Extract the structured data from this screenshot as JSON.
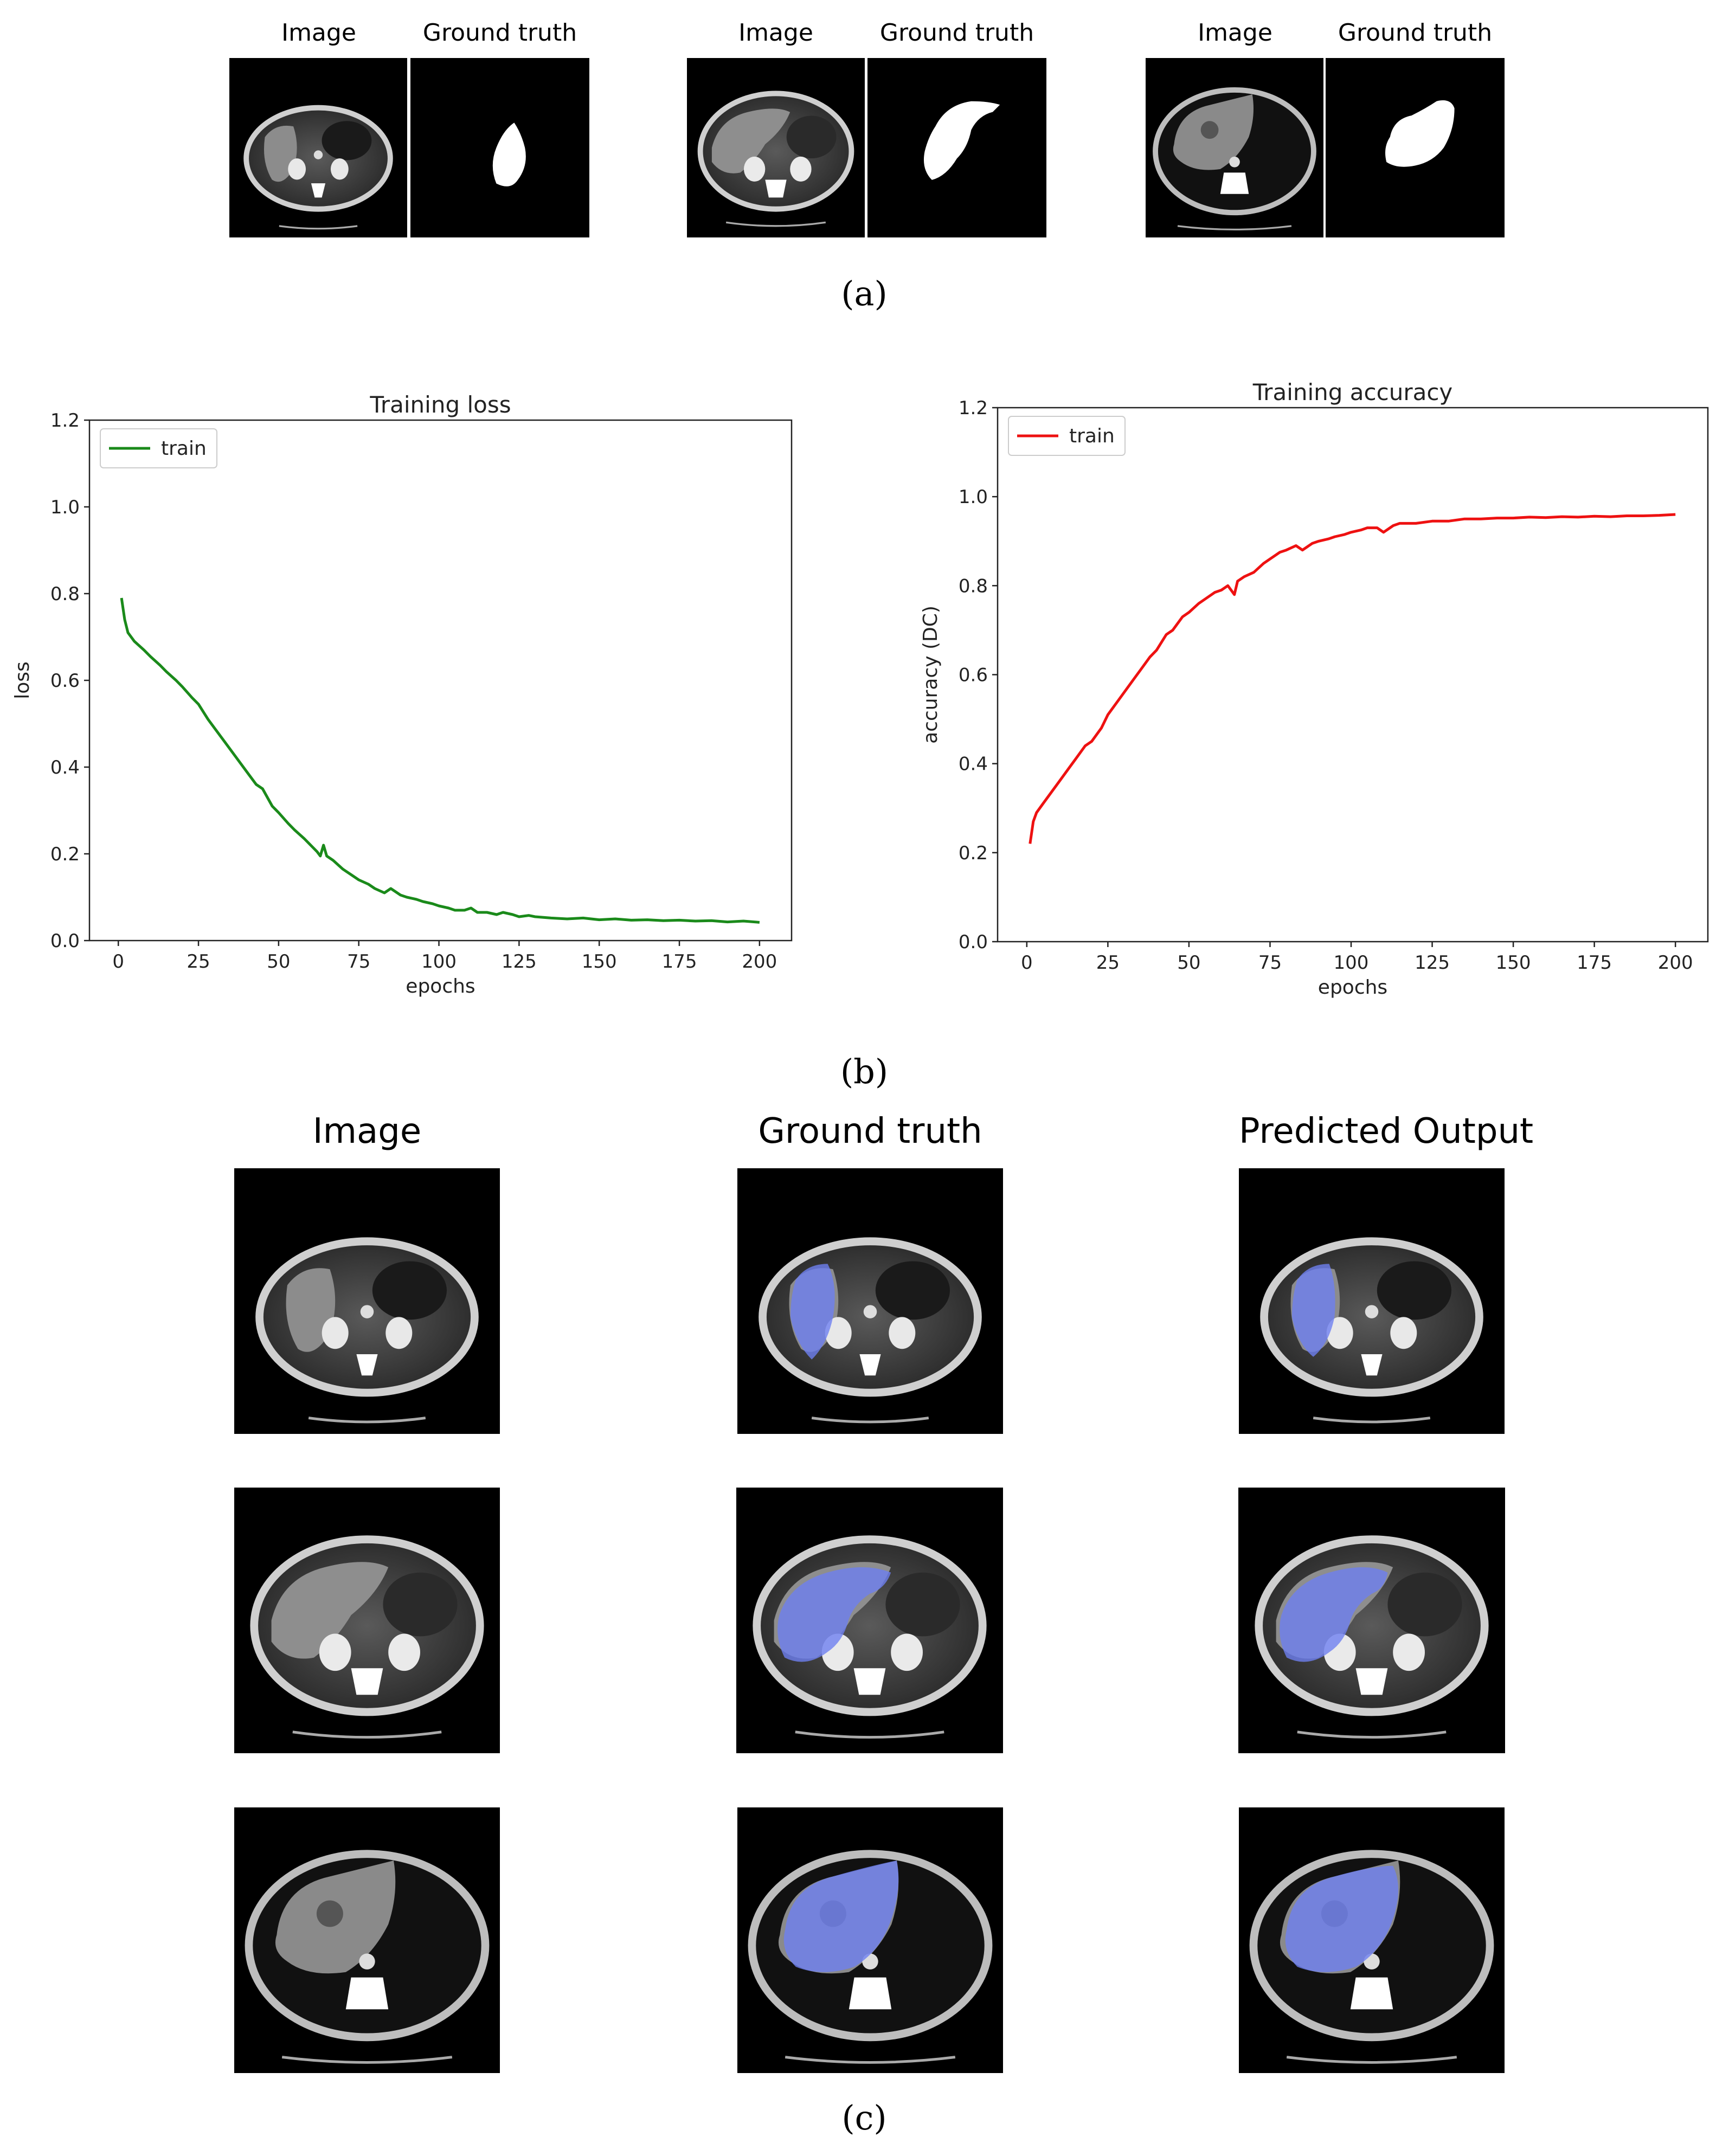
{
  "panel_a": {
    "groups": [
      {
        "image_label": "Image",
        "truth_label": "Ground truth"
      },
      {
        "image_label": "Image",
        "truth_label": "Ground truth"
      },
      {
        "image_label": "Image",
        "truth_label": "Ground truth"
      }
    ],
    "caption": "(a)"
  },
  "panel_b": {
    "caption": "(b)"
  },
  "panel_c": {
    "headers": [
      "Image",
      "Ground truth",
      "Predicted Output"
    ],
    "caption": "(c)"
  },
  "colors": {
    "loss_line": "#1a8a1a",
    "acc_line": "#ee1111",
    "overlay": "#6e7ff0"
  },
  "chart_data": [
    {
      "type": "line",
      "title": "Training loss",
      "xlabel": "epochs",
      "ylabel": "loss",
      "xlim": [
        -9,
        210
      ],
      "ylim": [
        0,
        1.2
      ],
      "xticks": [
        "0",
        "25",
        "50",
        "75",
        "100",
        "125",
        "150",
        "175",
        "200"
      ],
      "yticks": [
        "0.0",
        "0.2",
        "0.4",
        "0.6",
        "0.8",
        "1.0",
        "1.2"
      ],
      "legend": "top-left",
      "series": [
        {
          "name": "train",
          "x": [
            1,
            2,
            3,
            5,
            8,
            10,
            13,
            15,
            18,
            20,
            23,
            25,
            28,
            30,
            33,
            35,
            38,
            40,
            43,
            45,
            48,
            50,
            53,
            55,
            58,
            60,
            62,
            63,
            64,
            65,
            67,
            70,
            73,
            75,
            78,
            80,
            83,
            85,
            88,
            90,
            93,
            95,
            98,
            100,
            103,
            105,
            108,
            110,
            112,
            115,
            118,
            120,
            123,
            125,
            128,
            130,
            135,
            140,
            145,
            150,
            155,
            160,
            165,
            170,
            175,
            180,
            185,
            190,
            195,
            200
          ],
          "y": [
            0.79,
            0.74,
            0.71,
            0.69,
            0.67,
            0.655,
            0.635,
            0.62,
            0.6,
            0.585,
            0.56,
            0.545,
            0.51,
            0.49,
            0.46,
            0.44,
            0.41,
            0.39,
            0.36,
            0.35,
            0.31,
            0.295,
            0.27,
            0.255,
            0.235,
            0.22,
            0.205,
            0.195,
            0.22,
            0.195,
            0.185,
            0.165,
            0.15,
            0.14,
            0.13,
            0.12,
            0.11,
            0.12,
            0.105,
            0.1,
            0.095,
            0.09,
            0.085,
            0.08,
            0.075,
            0.07,
            0.07,
            0.075,
            0.065,
            0.065,
            0.06,
            0.065,
            0.06,
            0.055,
            0.058,
            0.055,
            0.052,
            0.05,
            0.052,
            0.048,
            0.05,
            0.047,
            0.048,
            0.046,
            0.047,
            0.045,
            0.046,
            0.043,
            0.045,
            0.042
          ]
        }
      ]
    },
    {
      "type": "line",
      "title": "Training accuracy",
      "xlabel": "epochs",
      "ylabel": "accuracy (DC)",
      "xlim": [
        -9,
        210
      ],
      "ylim": [
        0,
        1.2
      ],
      "xticks": [
        "0",
        "25",
        "50",
        "75",
        "100",
        "125",
        "150",
        "175",
        "200"
      ],
      "yticks": [
        "0.0",
        "0.2",
        "0.4",
        "0.6",
        "0.8",
        "1.0",
        "1.2"
      ],
      "legend": "top-left",
      "series": [
        {
          "name": "train",
          "x": [
            1,
            2,
            3,
            5,
            8,
            10,
            13,
            15,
            18,
            20,
            23,
            25,
            28,
            30,
            33,
            35,
            38,
            40,
            43,
            45,
            48,
            50,
            53,
            55,
            58,
            60,
            62,
            64,
            65,
            67,
            70,
            73,
            75,
            78,
            80,
            83,
            85,
            88,
            90,
            93,
            95,
            98,
            100,
            103,
            105,
            108,
            110,
            113,
            115,
            118,
            120,
            125,
            130,
            135,
            140,
            145,
            150,
            155,
            160,
            165,
            170,
            175,
            180,
            185,
            190,
            195,
            200
          ],
          "y": [
            0.22,
            0.27,
            0.29,
            0.31,
            0.34,
            0.36,
            0.39,
            0.41,
            0.44,
            0.45,
            0.48,
            0.51,
            0.54,
            0.56,
            0.59,
            0.61,
            0.64,
            0.655,
            0.69,
            0.7,
            0.73,
            0.74,
            0.76,
            0.77,
            0.785,
            0.79,
            0.8,
            0.78,
            0.81,
            0.82,
            0.83,
            0.85,
            0.86,
            0.875,
            0.88,
            0.89,
            0.88,
            0.895,
            0.9,
            0.905,
            0.91,
            0.915,
            0.92,
            0.925,
            0.93,
            0.93,
            0.92,
            0.935,
            0.94,
            0.94,
            0.94,
            0.945,
            0.945,
            0.95,
            0.95,
            0.952,
            0.952,
            0.954,
            0.953,
            0.955,
            0.954,
            0.956,
            0.955,
            0.957,
            0.957,
            0.958,
            0.96
          ]
        }
      ]
    }
  ]
}
